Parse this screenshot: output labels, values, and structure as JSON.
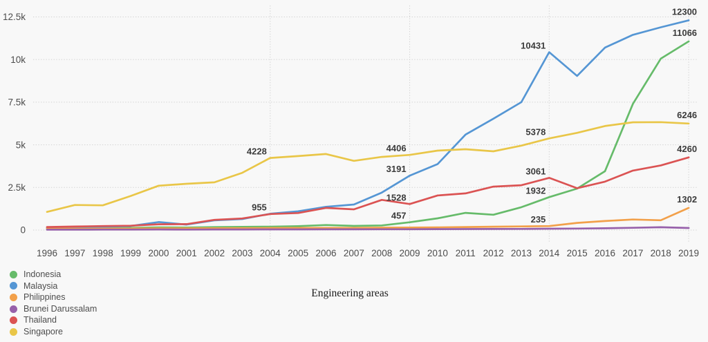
{
  "chart_data": {
    "type": "line",
    "title": "Engineering areas",
    "x": [
      1996,
      1997,
      1998,
      1999,
      2000,
      2001,
      2002,
      2003,
      2004,
      2005,
      2006,
      2007,
      2008,
      2009,
      2010,
      2011,
      2012,
      2013,
      2014,
      2015,
      2016,
      2017,
      2018,
      2019
    ],
    "xlabel": "",
    "ylabel": "",
    "ylim": [
      0,
      12500
    ],
    "y_ticks": [
      {
        "label": "0",
        "value": 0
      },
      {
        "label": "2.5k",
        "value": 2500
      },
      {
        "label": "5k",
        "value": 5000
      },
      {
        "label": "7.5k",
        "value": 7500
      },
      {
        "label": "10k",
        "value": 10000
      },
      {
        "label": "12.5k",
        "value": 12500
      }
    ],
    "grid": {
      "horizontal": true,
      "vertical_years": [
        2004,
        2009,
        2014,
        2019
      ],
      "style": "dotted"
    },
    "legend_position": "bottom-left",
    "series": [
      {
        "name": "Indonesia",
        "color": "#66bb6a",
        "values": [
          100,
          110,
          115,
          125,
          160,
          150,
          175,
          190,
          200,
          230,
          296,
          245,
          270,
          457,
          690,
          1010,
          900,
          1340,
          1932,
          2430,
          3450,
          7400,
          10050,
          11066
        ],
        "labels": {
          "2009": 457,
          "2014": 1932,
          "2019": 11066
        }
      },
      {
        "name": "Malaysia",
        "color": "#5596d4",
        "values": [
          155,
          175,
          195,
          240,
          470,
          320,
          570,
          650,
          955,
          1100,
          1365,
          1500,
          2200,
          3191,
          3870,
          5600,
          6530,
          7500,
          10431,
          9040,
          10700,
          11450,
          11890,
          12300
        ],
        "labels": {
          "2004": 955,
          "2009": 3191,
          "2014": 10431,
          "2019": 12300
        }
      },
      {
        "name": "Philippines",
        "color": "#f2a04a",
        "values": [
          75,
          80,
          85,
          90,
          100,
          100,
          110,
          115,
          120,
          125,
          130,
          130,
          140,
          150,
          160,
          180,
          200,
          215,
          235,
          420,
          530,
          620,
          575,
          1302
        ],
        "labels": {
          "2014": 235,
          "2019": 1302
        }
      },
      {
        "name": "Brunei Darussalam",
        "color": "#9760aa",
        "values": [
          25,
          25,
          30,
          30,
          35,
          30,
          35,
          35,
          40,
          40,
          45,
          45,
          50,
          50,
          55,
          60,
          65,
          70,
          80,
          90,
          105,
          135,
          165,
          120
        ],
        "labels": {}
      },
      {
        "name": "Thailand",
        "color": "#db5353",
        "values": [
          180,
          205,
          235,
          255,
          340,
          350,
          600,
          680,
          940,
          1000,
          1300,
          1215,
          1770,
          1528,
          2030,
          2150,
          2550,
          2630,
          3061,
          2455,
          2840,
          3490,
          3790,
          4260
        ],
        "labels": {
          "2009": 1528,
          "2014": 3061,
          "2019": 4260
        }
      },
      {
        "name": "Singapore",
        "color": "#e9c648",
        "values": [
          1065,
          1470,
          1450,
          2000,
          2600,
          2715,
          2800,
          3360,
          4228,
          4340,
          4460,
          4060,
          4290,
          4406,
          4660,
          4740,
          4620,
          4950,
          5378,
          5700,
          6100,
          6320,
          6330,
          6246
        ],
        "labels": {
          "2004": 4228,
          "2009": 4406,
          "2014": 5378,
          "2019": 6246
        }
      }
    ]
  },
  "style": {
    "background": "#f8f8f8",
    "gridline_color": "#cfcfcf",
    "tick_color": "#4c4c4c",
    "data_label_color": "#3b3b3b",
    "legend_text_color": "#4d4d4d"
  }
}
